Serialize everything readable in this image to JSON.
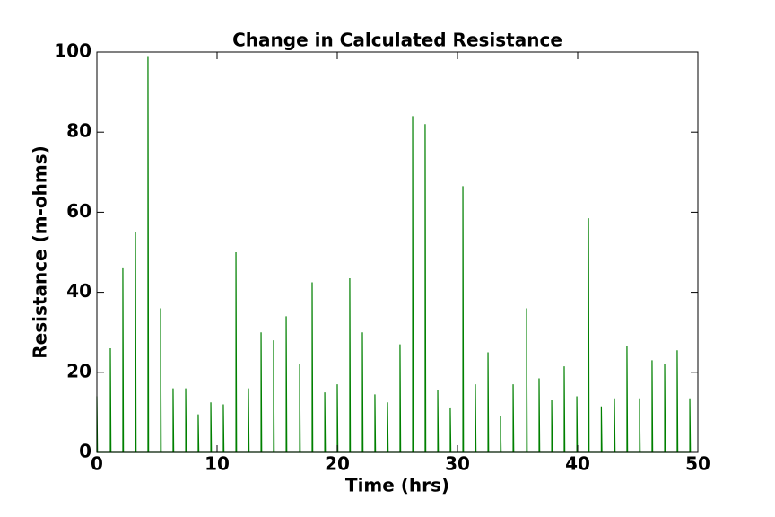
{
  "chart_data": {
    "type": "line",
    "title": "Change in Calculated Resistance",
    "x_label": "Time (hrs)",
    "y_label": "Resistance (m-ohms)",
    "x": [
      0,
      0,
      0.05,
      1.12,
      1.12,
      1.17,
      2.16,
      2.16,
      2.21,
      3.21,
      3.21,
      3.26,
      4.25,
      4.25,
      4.3,
      5.3,
      5.3,
      5.35,
      6.34,
      6.34,
      6.39,
      7.39,
      7.39,
      7.44,
      8.43,
      8.43,
      8.48,
      9.48,
      9.48,
      9.53,
      10.52,
      10.52,
      10.57,
      11.57,
      11.57,
      11.62,
      12.61,
      12.61,
      12.66,
      13.66,
      13.66,
      13.71,
      14.7,
      14.7,
      14.75,
      15.75,
      15.75,
      15.8,
      16.87,
      16.87,
      16.92,
      17.91,
      17.91,
      17.96,
      18.96,
      18.96,
      19.01,
      20,
      20,
      20.05,
      21.04,
      21.04,
      21.09,
      22.09,
      22.09,
      22.14,
      23.13,
      23.13,
      23.18,
      24.18,
      24.18,
      24.23,
      25.22,
      25.22,
      25.27,
      26.27,
      26.27,
      26.32,
      27.31,
      27.31,
      27.36,
      28.36,
      28.36,
      28.41,
      29.4,
      29.4,
      29.45,
      30.45,
      30.45,
      30.5,
      31.49,
      31.49,
      31.54,
      32.54,
      32.54,
      32.59,
      33.58,
      33.58,
      33.63,
      34.63,
      34.63,
      34.68,
      35.75,
      35.75,
      35.8,
      36.79,
      36.79,
      36.84,
      37.84,
      37.84,
      37.89,
      38.88,
      38.88,
      38.93,
      39.93,
      39.93,
      39.98,
      40.9,
      40.9,
      40.95,
      41.97,
      41.97,
      42.02,
      43.06,
      43.06,
      43.11,
      44.1,
      44.1,
      44.15,
      45.15,
      45.15,
      45.2,
      46.19,
      46.19,
      46.24,
      47.24,
      47.24,
      47.29,
      48.28,
      48.28,
      48.33,
      49.33,
      49.33,
      49.38
    ],
    "series": [
      {
        "name": "Resistance",
        "color": "#008000",
        "values": [
          0,
          14,
          0,
          0,
          26,
          0,
          0,
          46,
          0,
          0,
          55,
          0,
          0,
          99,
          0,
          0,
          36,
          0,
          0,
          16,
          0,
          0,
          16,
          0,
          0,
          9.5,
          0,
          0,
          12.5,
          0,
          0,
          12,
          0,
          0,
          50,
          0,
          0,
          16,
          0,
          0,
          30,
          0,
          0,
          28,
          0,
          0,
          34,
          0,
          0,
          22,
          0,
          0,
          42.5,
          0,
          0,
          15,
          0,
          0,
          17,
          0,
          0,
          43.5,
          0,
          0,
          30,
          0,
          0,
          14.5,
          0,
          0,
          12.5,
          0,
          0,
          27,
          0,
          0,
          84,
          0,
          0,
          82,
          0,
          0,
          15.5,
          0,
          0,
          11,
          0,
          0,
          66.5,
          0,
          0,
          17,
          0,
          0,
          25,
          0,
          0,
          9,
          0,
          0,
          17,
          0,
          0,
          36,
          0,
          0,
          18.5,
          0,
          0,
          13,
          0,
          0,
          21.5,
          0,
          0,
          14,
          0,
          0,
          58.5,
          0,
          0,
          11.5,
          0,
          0,
          13.5,
          0,
          0,
          26.5,
          0,
          0,
          13.5,
          0,
          0,
          23,
          0,
          0,
          22,
          0,
          0,
          25.5,
          0,
          0,
          13.5,
          0
        ]
      }
    ],
    "xlim": [
      0,
      50
    ],
    "xticks": [
      0,
      10,
      20,
      30,
      40,
      50
    ],
    "ylim": [
      0,
      100
    ],
    "yticks": [
      0,
      20,
      40,
      60,
      80,
      100
    ]
  }
}
